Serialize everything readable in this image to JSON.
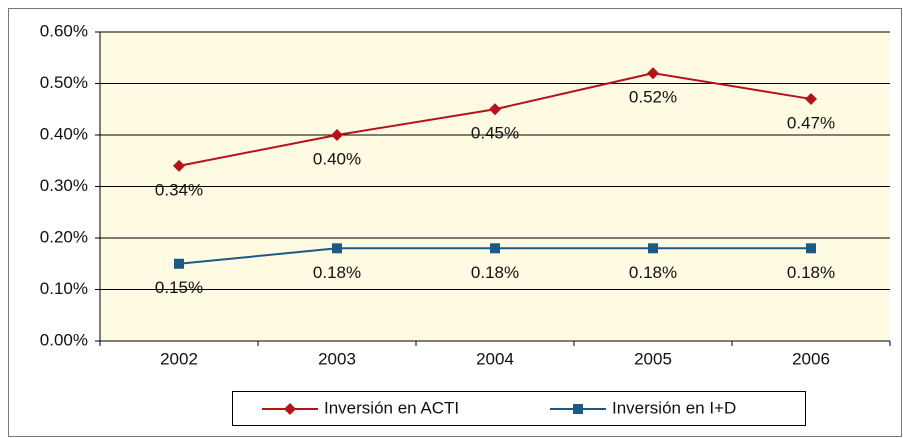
{
  "chart_data": {
    "type": "line",
    "categories": [
      "2002",
      "2003",
      "2004",
      "2005",
      "2006"
    ],
    "series": [
      {
        "name": "Inversión en ACTI",
        "color": "#b5121b",
        "marker": "diamond",
        "values": [
          0.34,
          0.4,
          0.45,
          0.52,
          0.47
        ],
        "value_labels": [
          "0.34%",
          "0.40%",
          "0.45%",
          "0.52%",
          "0.47%"
        ]
      },
      {
        "name": "Inversión en I+D",
        "color": "#1c5a86",
        "marker": "square",
        "values": [
          0.15,
          0.18,
          0.18,
          0.18,
          0.18
        ],
        "value_labels": [
          "0.15%",
          "0.18%",
          "0.18%",
          "0.18%",
          "0.18%"
        ]
      }
    ],
    "ylim": [
      0,
      0.6
    ],
    "yticks": [
      {
        "value": 0,
        "label": "0.00%"
      },
      {
        "value": 0.1,
        "label": "0.10%"
      },
      {
        "value": 0.2,
        "label": "0.20%"
      },
      {
        "value": 0.3,
        "label": "0.30%"
      },
      {
        "value": 0.4,
        "label": "0.40%"
      },
      {
        "value": 0.5,
        "label": "0.50%"
      },
      {
        "value": 0.6,
        "label": "0.60%"
      }
    ],
    "grid": true,
    "legend": "bottom",
    "plot_background": "#fffbe3"
  }
}
